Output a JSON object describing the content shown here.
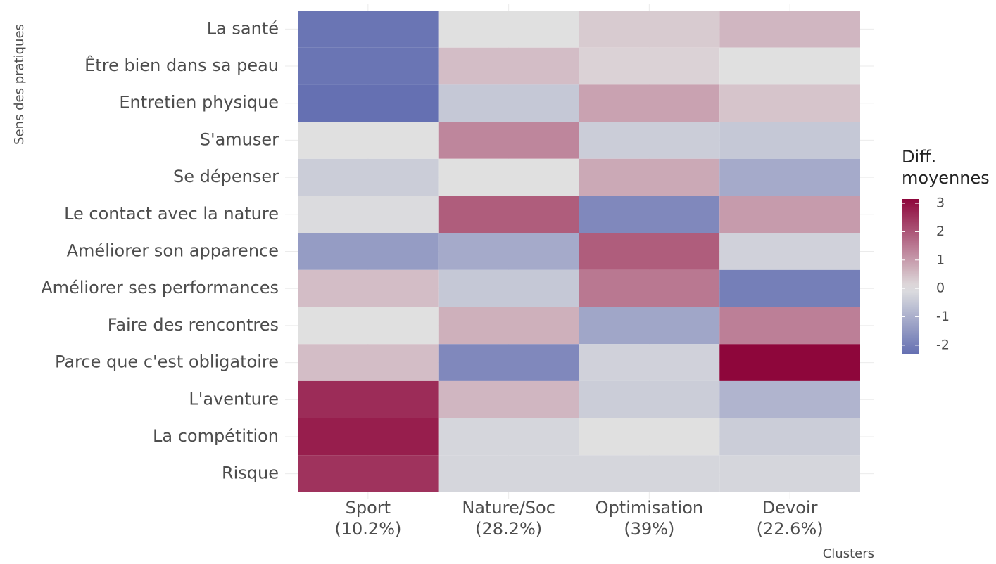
{
  "chart_data": {
    "type": "heatmap",
    "x_label": "Clusters",
    "y_label": "Sens des pratiques",
    "legend_title": "Diff.\nmoyennes",
    "x": [
      "Sport\n(10.2%)",
      "Nature/Soc\n(28.2%)",
      "Optimisation\n(39%)",
      "Devoir\n(22.6%)"
    ],
    "categories": [
      "La santé",
      "Être bien dans sa peau",
      "Entretien physique",
      "S'amuser",
      "Se dépenser",
      "Le contact avec la nature",
      "Améliorer son apparence",
      "Améliorer ses performances",
      "Faire des rencontres",
      "Parce que c'est obligatoire",
      "L'aventure",
      "La compétition",
      "Risque"
    ],
    "values": [
      [
        -2.2,
        0,
        0.3,
        0.6
      ],
      [
        -2.2,
        0.5,
        0.2,
        0
      ],
      [
        -2.3,
        -0.5,
        0.9,
        0.4
      ],
      [
        0,
        1.3,
        -0.4,
        -0.5
      ],
      [
        -0.4,
        0,
        0.8,
        -1.1
      ],
      [
        -0.1,
        1.9,
        -1.8,
        1.0
      ],
      [
        -1.4,
        -1.1,
        1.9,
        -0.3
      ],
      [
        0.5,
        -0.5,
        1.5,
        -2.0
      ],
      [
        0,
        0.7,
        -1.2,
        1.4
      ],
      [
        0.5,
        -1.8,
        -0.3,
        3.15
      ],
      [
        2.6,
        0.6,
        -0.4,
        -0.9
      ],
      [
        2.8,
        -0.2,
        0,
        -0.4
      ],
      [
        2.5,
        -0.2,
        -0.2,
        -0.2
      ]
    ],
    "colors": {
      "low": "#6570b2",
      "mid": "#e0e0e0",
      "high": "#8e063b"
    },
    "zlim": [
      -2.3,
      3.15
    ],
    "zticks": [
      3,
      2,
      1,
      0,
      -1,
      -2
    ],
    "grid": true
  }
}
